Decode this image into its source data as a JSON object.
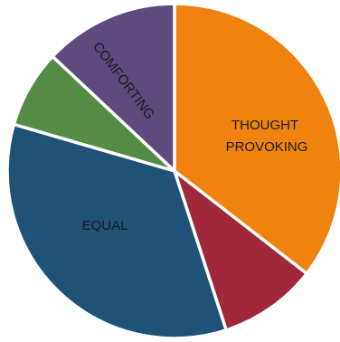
{
  "chart_data": {
    "type": "pie",
    "start_angle_deg": 0,
    "direction": "clockwise",
    "slices": [
      {
        "label": "THOUGHT\nPROVOKING",
        "value": 35.5,
        "color": "#F0820F"
      },
      {
        "label": "",
        "value": 9.5,
        "color": "#A0283A"
      },
      {
        "label": "EQUAL",
        "value": 34.5,
        "color": "#1E5277"
      },
      {
        "label": "",
        "value": 7.5,
        "color": "#548C45"
      },
      {
        "label": "COMFORTING",
        "value": 13.0,
        "color": "#5E4B7D"
      }
    ]
  }
}
